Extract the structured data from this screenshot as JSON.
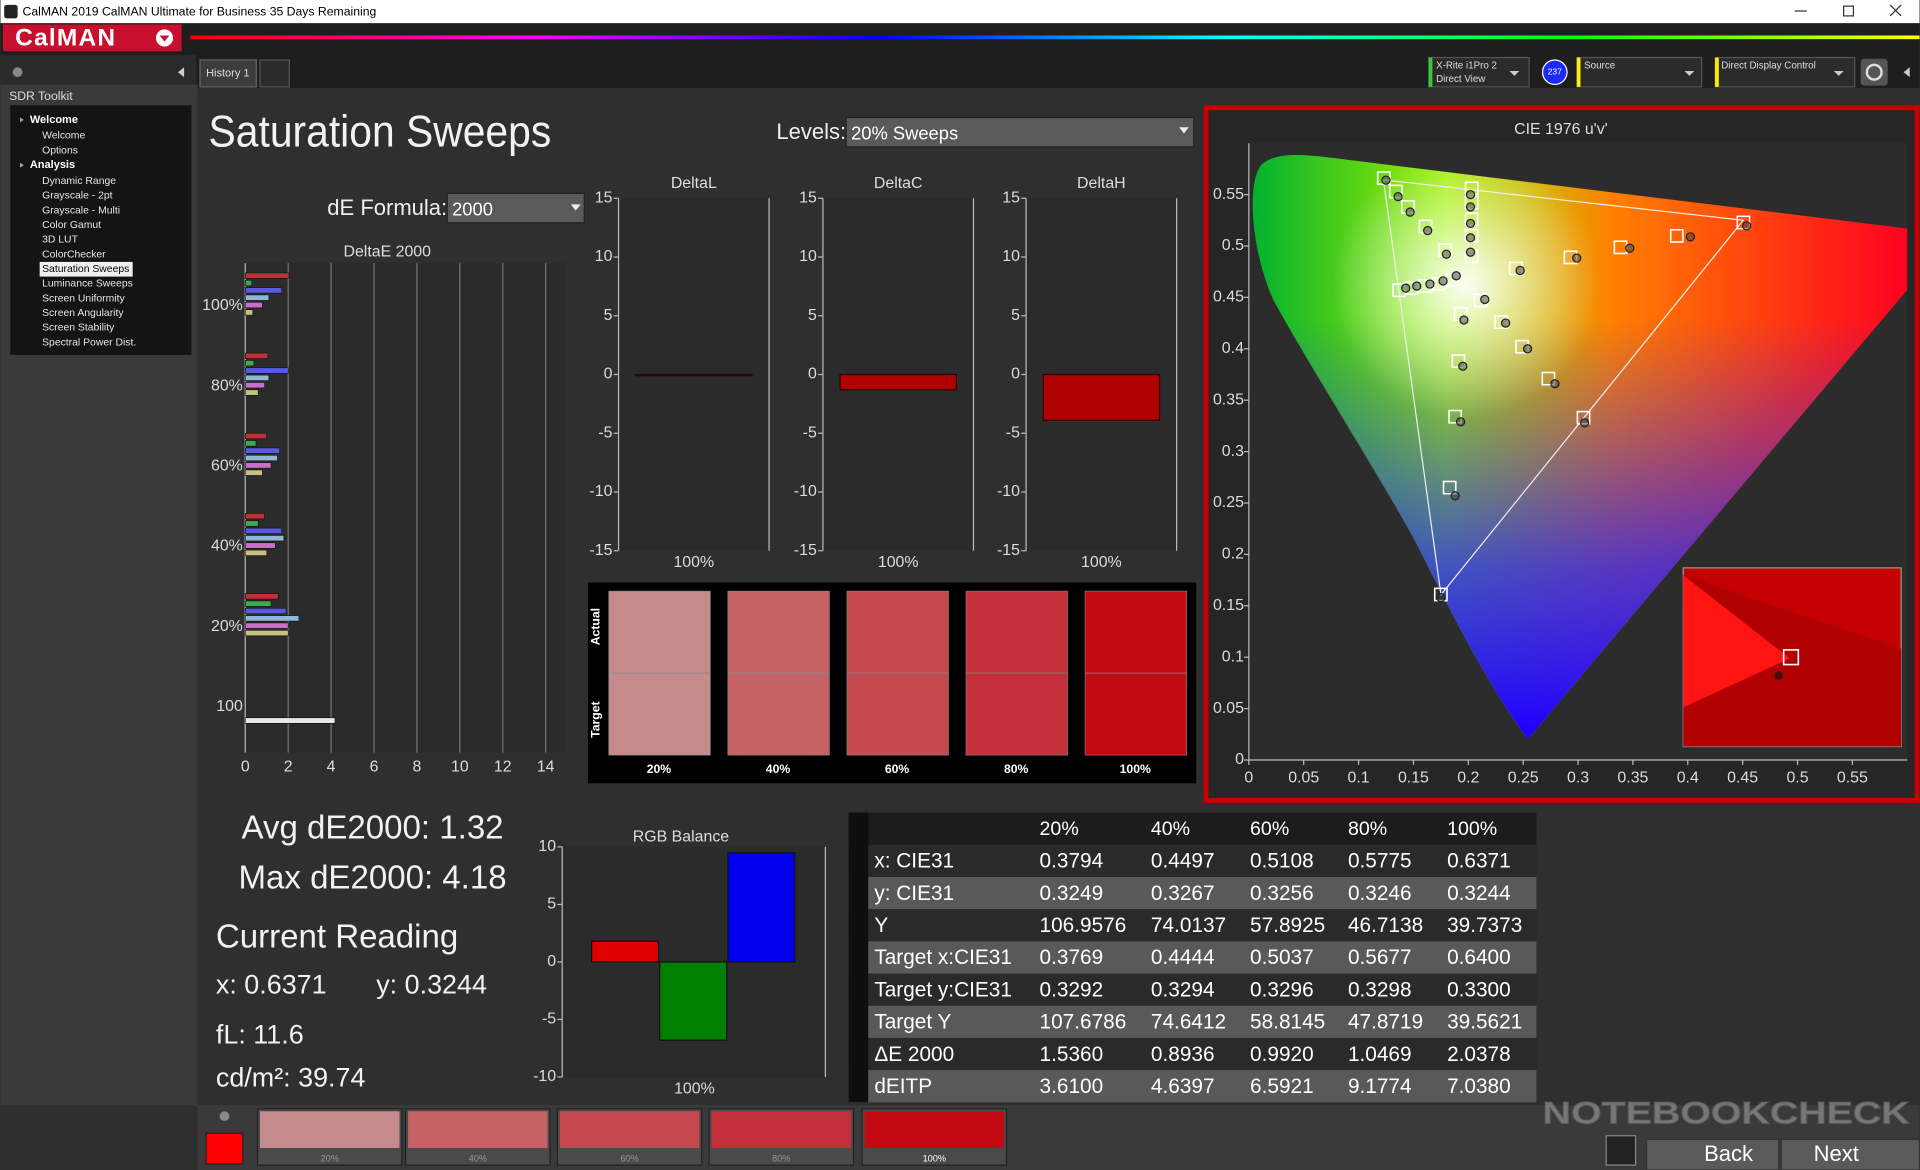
{
  "window": {
    "title": "CalMAN 2019 CalMAN Ultimate for Business 35 Days Remaining",
    "logo": "CalMAN"
  },
  "tabs": [
    "History 1"
  ],
  "toolbar": {
    "meter": [
      "X-Rite i1Pro 2",
      "Direct View"
    ],
    "meter_badge": "237",
    "source": "Source",
    "display": "Direct Display Control"
  },
  "sidebar": {
    "title": "SDR Toolkit",
    "selected": [
      1,
      6
    ],
    "groups": [
      {
        "name": "Welcome",
        "items": [
          "Welcome",
          "Options"
        ]
      },
      {
        "name": "Analysis",
        "items": [
          "Dynamic Range",
          "Grayscale - 2pt",
          "Grayscale - Multi",
          "Color Gamut",
          "3D LUT",
          "ColorChecker",
          "Saturation Sweeps",
          "Luminance Sweeps",
          "Screen Uniformity",
          "Screen Angularity",
          "Screen Stability",
          "Spectral Power Dist."
        ]
      }
    ]
  },
  "page": {
    "title": "Saturation Sweeps",
    "levels_label": "Levels:",
    "levels_value": "20% Sweeps",
    "formula_label": "dE Formula:",
    "formula_value": "2000"
  },
  "deltae_chart": {
    "type": "bar",
    "orientation": "horizontal",
    "title": "DeltaE 2000",
    "categories": [
      "100%",
      "80%",
      "60%",
      "40%",
      "20%",
      "100"
    ],
    "series": [
      {
        "color": "#c0303a",
        "values": [
          2.0378,
          1.0469,
          0.992,
          0.8936,
          1.536,
          null
        ]
      },
      {
        "color": "#40a850",
        "values": [
          0.3,
          0.4,
          0.5,
          0.6,
          1.2,
          null
        ]
      },
      {
        "color": "#5a5ae0",
        "values": [
          1.7,
          2.0,
          1.6,
          1.7,
          1.9,
          null
        ]
      },
      {
        "color": "#8fb8d8",
        "values": [
          1.1,
          1.1,
          1.5,
          1.8,
          2.5,
          null
        ]
      },
      {
        "color": "#c870c8",
        "values": [
          0.8,
          0.9,
          1.2,
          1.4,
          2.0,
          null
        ]
      },
      {
        "color": "#c8c080",
        "values": [
          0.35,
          0.6,
          0.8,
          1.0,
          2.0,
          null
        ]
      },
      {
        "color": "#e8e8e8",
        "values": [
          null,
          null,
          null,
          null,
          null,
          4.18
        ]
      }
    ],
    "xlim": [
      0,
      15
    ],
    "xticks": [
      0,
      2,
      4,
      6,
      8,
      10,
      12,
      14
    ],
    "grid": true
  },
  "delta_charts": [
    {
      "type": "bar",
      "title": "DeltaL",
      "categories": [
        "100%"
      ],
      "values": [
        -0.1
      ],
      "color": "#b00000",
      "ylim": [
        -15,
        15
      ],
      "yticks": [
        -15,
        -10,
        -5,
        0,
        5,
        10,
        15
      ]
    },
    {
      "type": "bar",
      "title": "DeltaC",
      "categories": [
        "100%"
      ],
      "values": [
        -1.3
      ],
      "color": "#b00000",
      "ylim": [
        -15,
        15
      ],
      "yticks": [
        -15,
        -10,
        -5,
        0,
        5,
        10,
        15
      ]
    },
    {
      "type": "bar",
      "title": "DeltaH",
      "categories": [
        "100%"
      ],
      "values": [
        -3.9
      ],
      "color": "#b00000",
      "ylim": [
        -15,
        15
      ],
      "yticks": [
        -15,
        -10,
        -5,
        0,
        5,
        10,
        15
      ]
    }
  ],
  "swatches": {
    "labels": [
      "20%",
      "40%",
      "60%",
      "80%",
      "100%"
    ],
    "colors": [
      "#c48a8c",
      "#c46265",
      "#c54a4f",
      "#c3303a",
      "#c30a14"
    ],
    "actual_label": "Actual",
    "target_label": "Target"
  },
  "rgb_balance": {
    "type": "bar",
    "title": "RGB Balance",
    "categories": [
      "100%"
    ],
    "series": [
      {
        "color": "#e00000",
        "values": [
          1.8
        ]
      },
      {
        "color": "#008000",
        "values": [
          -6.8
        ]
      },
      {
        "color": "#0000ee",
        "values": [
          9.5
        ]
      }
    ],
    "ylim": [
      -10,
      10
    ],
    "yticks": [
      -10,
      -5,
      0,
      5,
      10
    ]
  },
  "readings": {
    "avg": "Avg dE2000: 1.32",
    "max": "Max dE2000: 4.18",
    "current_title": "Current Reading",
    "x": "x: 0.6371",
    "y": "y: 0.3244",
    "fl": "fL: 11.6",
    "luminance": "cd/m²: 39.74"
  },
  "table": {
    "columns": [
      "20%",
      "40%",
      "60%",
      "80%",
      "100%"
    ],
    "rows": [
      {
        "label": "x: CIE31",
        "values": [
          "0.3794",
          "0.4497",
          "0.5108",
          "0.5775",
          "0.6371"
        ]
      },
      {
        "label": "y: CIE31",
        "values": [
          "0.3249",
          "0.3267",
          "0.3256",
          "0.3246",
          "0.3244"
        ]
      },
      {
        "label": "Y",
        "values": [
          "106.9576",
          "74.0137",
          "57.8925",
          "46.7138",
          "39.7373"
        ]
      },
      {
        "label": "Target x:CIE31",
        "values": [
          "0.3769",
          "0.4444",
          "0.5037",
          "0.5677",
          "0.6400"
        ]
      },
      {
        "label": "Target y:CIE31",
        "values": [
          "0.3292",
          "0.3294",
          "0.3296",
          "0.3298",
          "0.3300"
        ]
      },
      {
        "label": "Target Y",
        "values": [
          "107.6786",
          "74.6412",
          "58.8145",
          "47.8719",
          "39.5621"
        ]
      },
      {
        "label": "ΔE 2000",
        "values": [
          "1.5360",
          "0.8936",
          "0.9920",
          "1.0469",
          "2.0378"
        ]
      },
      {
        "label": "dEITP",
        "values": [
          "3.6100",
          "4.6397",
          "6.5921",
          "9.1774",
          "7.0380"
        ]
      }
    ]
  },
  "cie_chart": {
    "type": "scatter",
    "title": "CIE 1976 u'v'",
    "xlim": [
      0,
      0.6
    ],
    "ylim": [
      0,
      0.6
    ],
    "xticks": [
      0,
      0.05,
      0.1,
      0.15,
      0.2,
      0.25,
      0.3,
      0.35,
      0.4,
      0.45,
      0.5,
      0.55
    ],
    "yticks": [
      0,
      0.05,
      0.1,
      0.15,
      0.2,
      0.25,
      0.3,
      0.35,
      0.4,
      0.45,
      0.5,
      0.55
    ],
    "series": [
      {
        "target_u": [
          0.2433,
          0.2931,
          0.3387,
          0.39,
          0.4507
        ],
        "target_v": [
          0.4781,
          0.4889,
          0.4987,
          0.5098,
          0.5229
        ],
        "u": [
          0.2472,
          0.2988,
          0.3472,
          0.4024,
          0.4536
        ],
        "v": [
          0.4762,
          0.4883,
          0.4979,
          0.5089,
          0.5196
        ]
      },
      {
        "target_u": [
          0.179,
          0.161,
          0.145,
          0.134,
          0.123
        ],
        "target_v": [
          0.496,
          0.519,
          0.538,
          0.553,
          0.566
        ],
        "u": [
          0.18,
          0.163,
          0.147,
          0.136,
          0.125
        ],
        "v": [
          0.492,
          0.515,
          0.533,
          0.548,
          0.564
        ]
      },
      {
        "target_u": [
          0.193,
          0.191,
          0.188,
          0.183,
          0.175
        ],
        "target_v": [
          0.434,
          0.388,
          0.334,
          0.265,
          0.161
        ],
        "u": [
          0.196,
          0.195,
          0.193,
          0.188,
          0.175
        ],
        "v": [
          0.428,
          0.383,
          0.329,
          0.257,
          0.158
        ]
      },
      {
        "target_u": [
          0.185,
          0.173,
          0.16,
          0.148,
          0.137
        ],
        "target_v": [
          0.467,
          0.463,
          0.461,
          0.459,
          0.457
        ],
        "u": [
          0.189,
          0.177,
          0.165,
          0.153,
          0.143
        ],
        "v": [
          0.471,
          0.466,
          0.463,
          0.461,
          0.459
        ]
      },
      {
        "target_u": [
          0.211,
          0.23,
          0.249,
          0.273,
          0.305
        ],
        "target_v": [
          0.447,
          0.426,
          0.402,
          0.371,
          0.333
        ],
        "u": [
          0.215,
          0.234,
          0.254,
          0.279,
          0.306
        ],
        "v": [
          0.448,
          0.425,
          0.4,
          0.366,
          0.328
        ]
      },
      {
        "target_u": [
          0.203,
          0.203,
          0.203,
          0.203,
          0.203
        ],
        "target_v": [
          0.49,
          0.51,
          0.526,
          0.542,
          0.556
        ],
        "u": [
          0.202,
          0.202,
          0.202,
          0.202,
          0.202
        ],
        "v": [
          0.494,
          0.508,
          0.522,
          0.538,
          0.55
        ]
      }
    ]
  },
  "bottom_bar": {
    "labels": [
      "20%",
      "40%",
      "60%",
      "80%",
      "100%"
    ],
    "colors": [
      "#c48a8c",
      "#c46265",
      "#c54a4f",
      "#c3303a",
      "#c30a14"
    ],
    "back": "Back",
    "next": "Next"
  },
  "watermark": "NOTEBOOKCHECK"
}
